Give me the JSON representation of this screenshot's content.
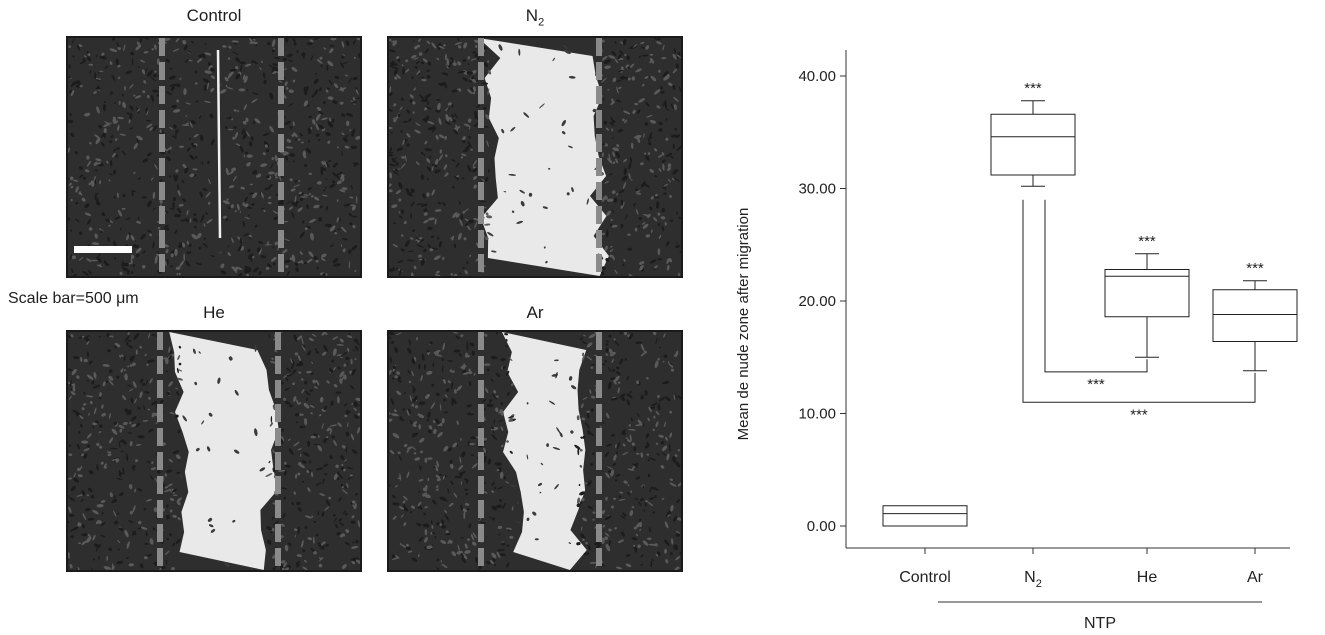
{
  "panels": [
    {
      "id": "control",
      "title": "Control",
      "title_sub": "",
      "gap": 0.03
    },
    {
      "id": "n2",
      "title": "N",
      "title_sub": "2",
      "gap": 0.38
    },
    {
      "id": "he",
      "title": "He",
      "title_sub": "",
      "gap": 0.3
    },
    {
      "id": "ar",
      "title": "Ar",
      "title_sub": "",
      "gap": 0.22
    }
  ],
  "scale_bar_label": "Scale bar=500 μm",
  "chart_data": {
    "type": "box",
    "ylabel": "Mean de nude zone after migration",
    "ylim": [
      0,
      40
    ],
    "yticks": [
      "0.00",
      "10.00",
      "20.00",
      "30.00",
      "40.00"
    ],
    "group_label": "NTP",
    "categories": [
      {
        "label": "Control",
        "sub": ""
      },
      {
        "label": "N",
        "sub": "2"
      },
      {
        "label": "He",
        "sub": ""
      },
      {
        "label": "Ar",
        "sub": ""
      }
    ],
    "boxes": [
      {
        "min": 0.0,
        "q1": 0.0,
        "median": 1.1,
        "q3": 1.8,
        "max": 1.8,
        "sig": ""
      },
      {
        "min": 30.2,
        "q1": 31.2,
        "median": 34.6,
        "q3": 36.6,
        "max": 37.8,
        "sig": "***"
      },
      {
        "min": 15.0,
        "q1": 18.6,
        "median": 22.2,
        "q3": 22.8,
        "max": 24.2,
        "sig": "***"
      },
      {
        "min": 13.8,
        "q1": 16.4,
        "median": 18.8,
        "q3": 21.0,
        "max": 21.8,
        "sig": "***"
      }
    ],
    "comparisons": [
      {
        "from": 1,
        "to": 2,
        "label": "***"
      },
      {
        "from": 1,
        "to": 3,
        "label": "***"
      }
    ]
  }
}
